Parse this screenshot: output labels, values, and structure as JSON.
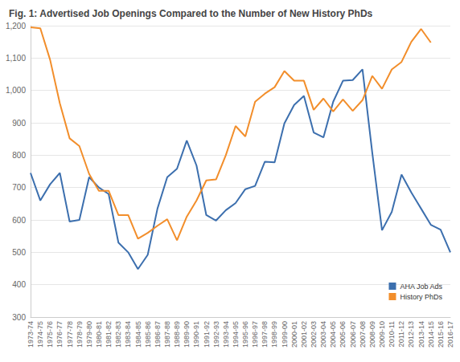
{
  "chart_data": {
    "type": "line",
    "title": "Fig. 1: Advertised Job Openings Compared to the Number of New History PhDs",
    "categories": [
      "1973-74",
      "1974-75",
      "1975-76",
      "1976-77",
      "1977-78",
      "1978-79",
      "1979-80",
      "1980-81",
      "1981-82",
      "1982-83",
      "1983-84",
      "1984-85",
      "1985-86",
      "1986-87",
      "1987-88",
      "1988-89",
      "1989-90",
      "1990-91",
      "1991-92",
      "1992-93",
      "1993-94",
      "1994-95",
      "1995-96",
      "1996-97",
      "1997-98",
      "1998-99",
      "1999-00",
      "2000-01",
      "2001-02",
      "2002-03",
      "2003-04",
      "2004-05",
      "2005-06",
      "2006-07",
      "2007-08",
      "2008-09",
      "2009-10",
      "2010-11",
      "2011-12",
      "2012-13",
      "2013-14",
      "2014-15",
      "2015-16",
      "2016-17"
    ],
    "series": [
      {
        "name": "AHA Job Ads",
        "color": "#3c6fae",
        "values": [
          745,
          660,
          710,
          745,
          595,
          600,
          732,
          700,
          680,
          530,
          500,
          448,
          492,
          635,
          732,
          758,
          845,
          768,
          615,
          598,
          630,
          652,
          695,
          705,
          780,
          778,
          898,
          955,
          983,
          870,
          855,
          965,
          1030,
          1032,
          1065,
          808,
          568,
          625,
          740,
          685,
          635,
          585,
          570,
          500
        ]
      },
      {
        "name": "History PhDs",
        "color": "#f28e2b",
        "values": [
          1195,
          1192,
          1095,
          960,
          852,
          828,
          742,
          690,
          690,
          615,
          615,
          542,
          560,
          582,
          602,
          537,
          610,
          660,
          722,
          725,
          800,
          890,
          858,
          965,
          990,
          1010,
          1060,
          1030,
          1030,
          940,
          975,
          935,
          972,
          937,
          970,
          1045,
          1005,
          1065,
          1088,
          1150,
          1190,
          1148,
          null,
          null
        ]
      }
    ],
    "ylim": [
      300,
      1200
    ],
    "yticks": [
      300,
      400,
      500,
      600,
      700,
      800,
      900,
      1000,
      1100,
      1200
    ],
    "grid": true,
    "legend": "lower right"
  }
}
